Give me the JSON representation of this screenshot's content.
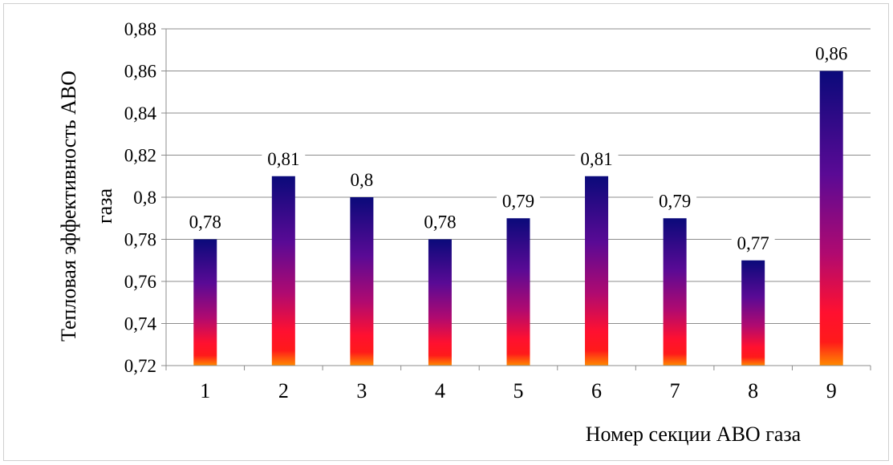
{
  "chart_data": {
    "type": "bar",
    "categories": [
      "1",
      "2",
      "3",
      "4",
      "5",
      "6",
      "7",
      "8",
      "9"
    ],
    "values": [
      0.78,
      0.81,
      0.8,
      0.78,
      0.79,
      0.81,
      0.79,
      0.77,
      0.86
    ],
    "data_labels": [
      "0,78",
      "0,81",
      "0,8",
      "0,78",
      "0,79",
      "0,81",
      "0,79",
      "0,77",
      "0,86"
    ],
    "title": "",
    "xlabel": "Номер секции АВО газа",
    "ylabel_line1": "Тепловая эффективность АВО",
    "ylabel_line2": "газа",
    "ylim": [
      0.72,
      0.88
    ],
    "yticks": [
      0.72,
      0.74,
      0.76,
      0.78,
      0.8,
      0.82,
      0.84,
      0.86,
      0.88
    ],
    "ytick_labels": [
      "0,72",
      "0,74",
      "0,76",
      "0,78",
      "0,8",
      "0,82",
      "0,84",
      "0,86",
      "0,88"
    ],
    "grid": true,
    "legend": "none",
    "colors": {
      "bar_top": "#0a0a7a",
      "bar_mid": "#7a0a8c",
      "bar_low": "#d4105a",
      "bar_base": "#ff1a1a",
      "bar_bottom": "#ff7a00",
      "grid": "#8c8c8c"
    }
  }
}
